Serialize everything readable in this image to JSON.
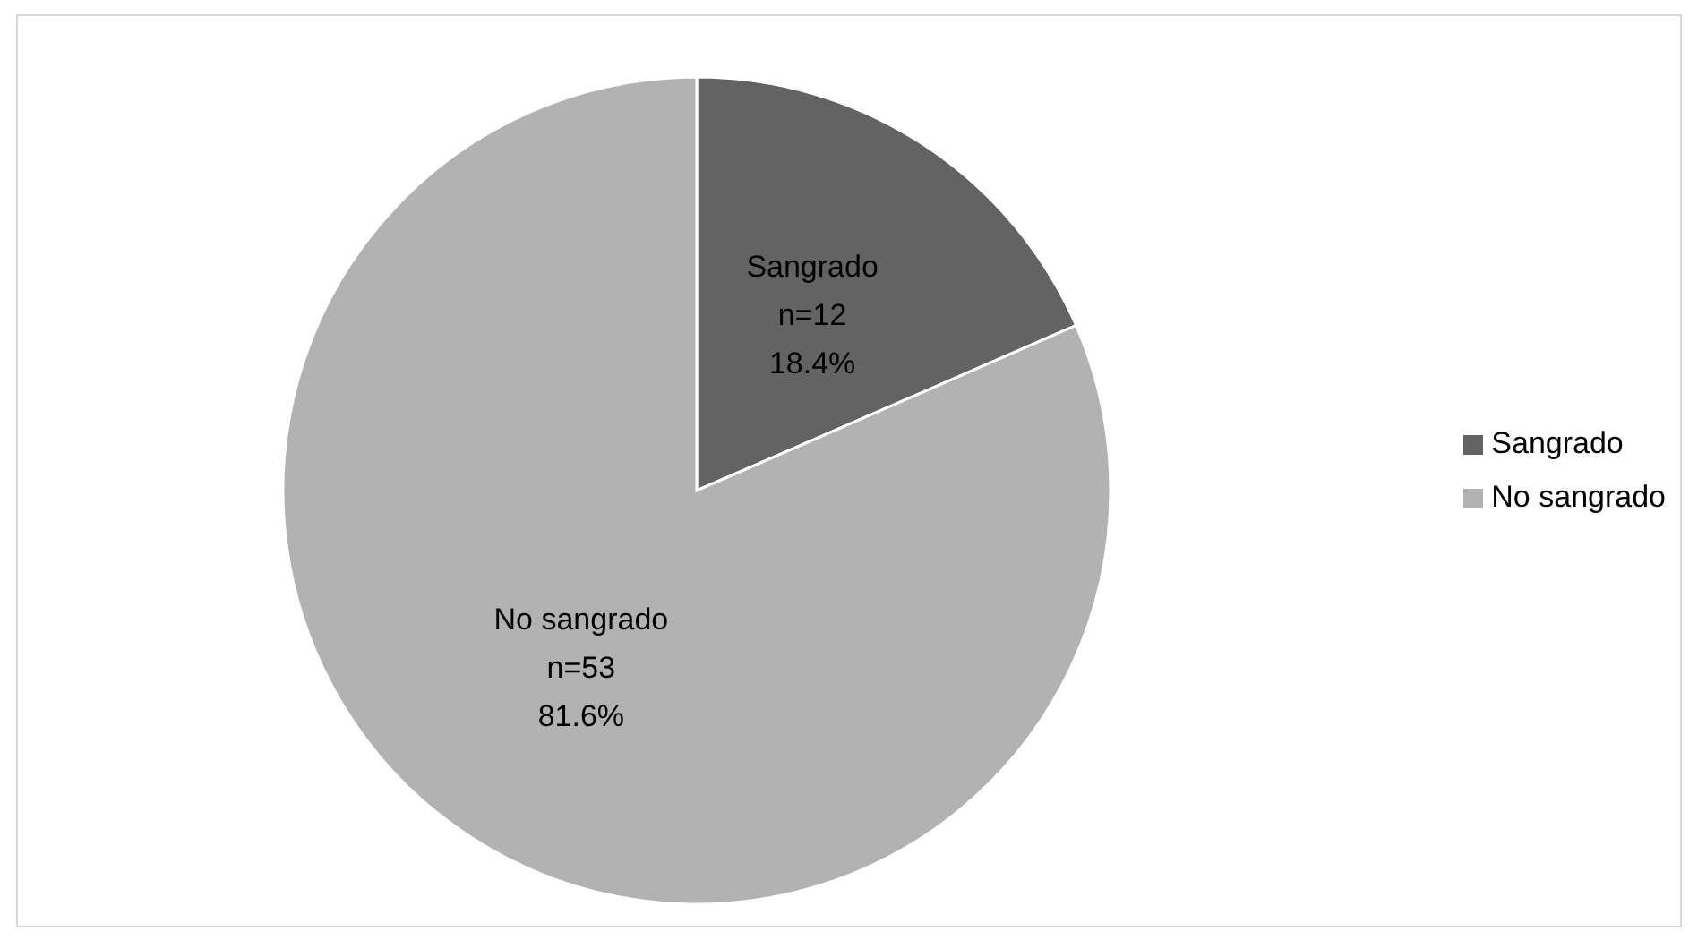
{
  "chart_data": {
    "type": "pie",
    "categories": [
      "Sangrado",
      "No sangrado"
    ],
    "values": [
      12,
      53
    ],
    "colors": [
      "#636363",
      "#b2b2b2"
    ],
    "value_labels": [
      "Sangrado\nn=12\n18.4%",
      "No sangrado\nn=53\n81.6%"
    ],
    "legend": "right"
  }
}
